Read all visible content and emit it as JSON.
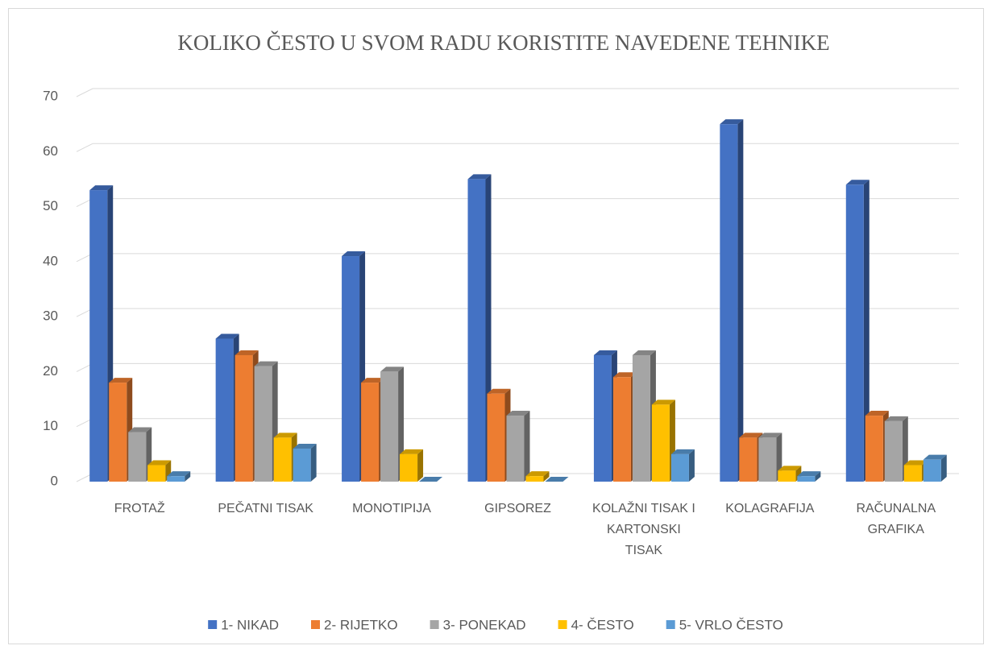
{
  "chart_data": {
    "type": "bar3d",
    "title": "KOLIKO ČESTO U SVOM RADU KORISTITE NAVEDENE TEHNIKE",
    "categories": [
      "FROTAŽ",
      "PEČATNI TISAK",
      "MONOTIPIJA",
      "GIPSOREZ",
      "KOLAŽNI TISAK I KARTONSKI TISAK",
      "KOLAGRAFIJA",
      "RAČUNALNA GRAFIKA"
    ],
    "series": [
      {
        "name": "1- NIKAD",
        "color": "#4472c4",
        "values": [
          53,
          26,
          41,
          55,
          23,
          65,
          54
        ]
      },
      {
        "name": "2- RIJETKO",
        "color": "#ed7d31",
        "values": [
          18,
          23,
          18,
          16,
          19,
          8,
          12
        ]
      },
      {
        "name": "3- PONEKAD",
        "color": "#a5a5a5",
        "values": [
          9,
          21,
          20,
          12,
          23,
          8,
          11
        ]
      },
      {
        "name": "4- ČESTO",
        "color": "#ffc000",
        "values": [
          3,
          8,
          5,
          1,
          14,
          2,
          3
        ]
      },
      {
        "name": "5- VRLO ČESTO",
        "color": "#5b9bd5",
        "values": [
          1,
          6,
          0,
          0,
          5,
          1,
          4
        ]
      }
    ],
    "ylim": [
      0,
      70
    ],
    "yticks": [
      0,
      10,
      20,
      30,
      40,
      50,
      60,
      70
    ],
    "grid": true,
    "legend": "bottom"
  }
}
